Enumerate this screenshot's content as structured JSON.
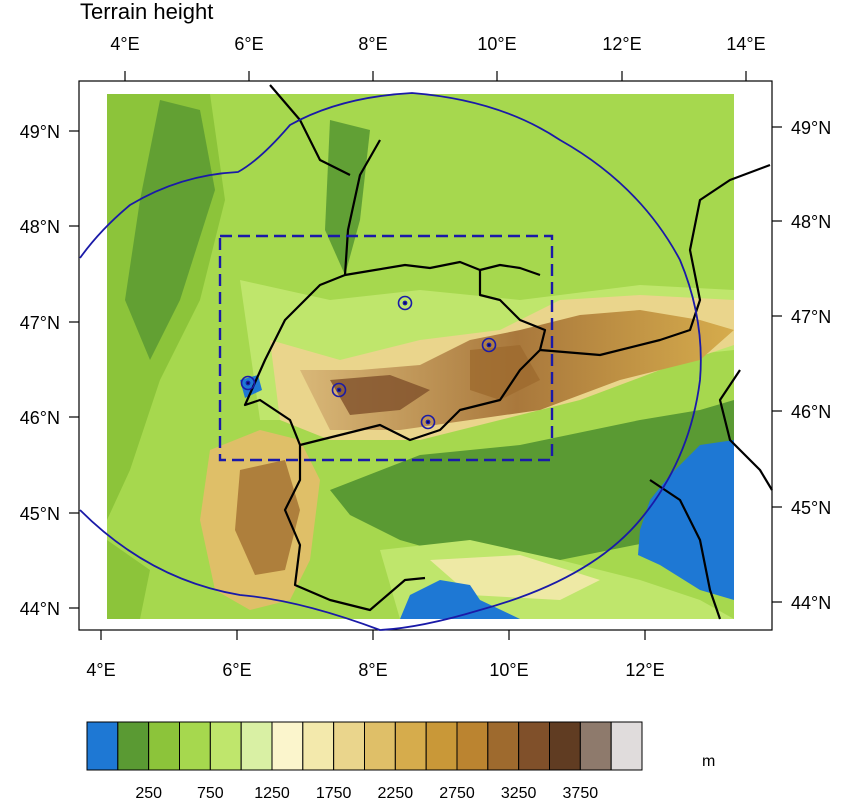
{
  "title": "Terrain height",
  "units": "m",
  "top_axis_labels": [
    "4°E",
    "6°E",
    "8°E",
    "10°E",
    "12°E",
    "14°E"
  ],
  "bottom_axis_labels": [
    "4°E",
    "6°E",
    "8°E",
    "10°E",
    "12°E"
  ],
  "lat_labels": [
    "49°N",
    "48°N",
    "47°N",
    "46°N",
    "45°N",
    "44°N"
  ],
  "colorbar": {
    "colors": [
      "#1e78d4",
      "#5a9a33",
      "#8cc43a",
      "#a6d84e",
      "#bfe66c",
      "#d9f0a4",
      "#fbf5cc",
      "#f3e9ac",
      "#ead58c",
      "#dfbf68",
      "#d6ac4c",
      "#c99838",
      "#bb8430",
      "#9e6a2e",
      "#80502a",
      "#603c22",
      "#8e7a6c",
      "#e0dcdc"
    ],
    "labels": [
      "250",
      "750",
      "1250",
      "1750",
      "2250",
      "2750",
      "3250",
      "3750"
    ]
  },
  "stations": [
    "s1",
    "s2",
    "s3",
    "s4",
    "s5",
    "s6"
  ],
  "colors": {
    "water": "#1e78d4",
    "lowland": "#5a9a33",
    "domain_outline": "#1a1aa8",
    "border": "#000000"
  }
}
